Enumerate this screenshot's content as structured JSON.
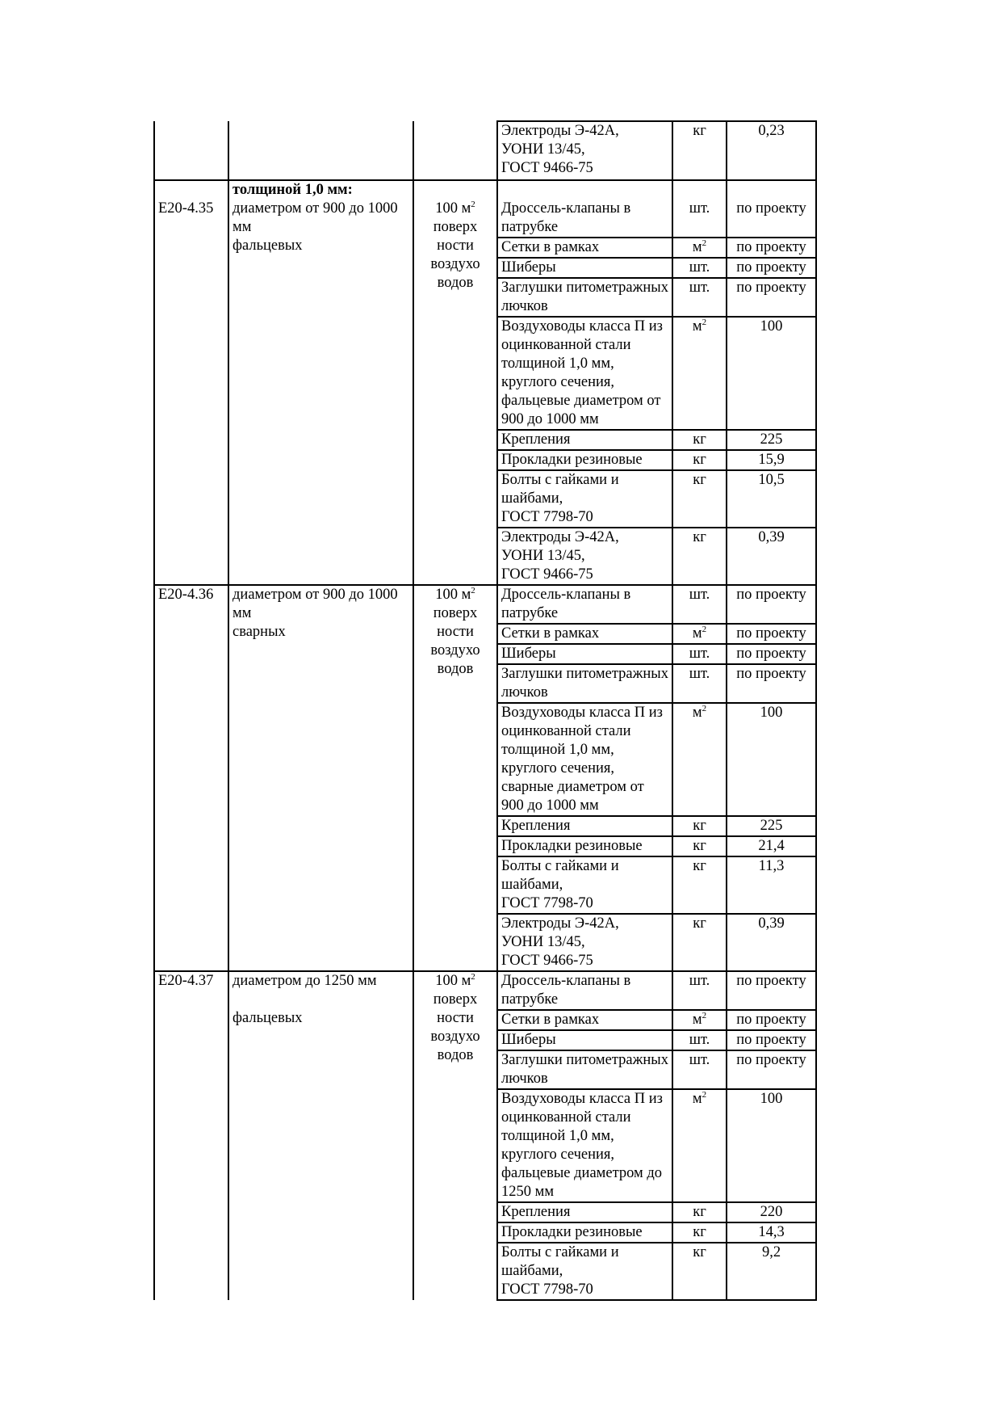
{
  "continuation": {
    "materials": [
      {
        "name": "Электроды Э-42А,\nУОНИ 13/45,\nГОСТ 9466-75",
        "unit": "кг",
        "qty": "0,23"
      }
    ]
  },
  "blocks": [
    {
      "code": "Е20-4.35",
      "heading": "толщиной 1,0 мм:",
      "description": "диаметром от 900 до 1000 мм\nфальцевых",
      "measure": "100 м",
      "measure_sup": "2",
      "measure_rest": "поверх\nности\nвоздухо\nводов",
      "materials": [
        {
          "name": "Дроссель-клапаны в патрубке",
          "unit": "шт.",
          "qty": "по проекту"
        },
        {
          "name": "Сетки в рамках",
          "unit": "м",
          "unit_sup": "2",
          "qty": "по проекту"
        },
        {
          "name": "Шиберы",
          "unit": "шт.",
          "qty": "по проекту"
        },
        {
          "name": "Заглушки питометражных лючков",
          "unit": "шт.",
          "qty": "по проекту"
        },
        {
          "name": "Воздуховоды класса П из оцинкованной стали толщиной 1,0 мм, круглого сечения, фальцевые диаметром от 900 до 1000 мм",
          "unit": "м",
          "unit_sup": "2",
          "qty": "100"
        },
        {
          "name": "Крепления",
          "unit": "кг",
          "qty": "225"
        },
        {
          "name": "Прокладки резиновые",
          "unit": "кг",
          "qty": "15,9"
        },
        {
          "name": "Болты с гайками и шайбами,\nГОСТ 7798-70",
          "unit": "кг",
          "qty": "10,5"
        },
        {
          "name": "Электроды Э-42А,\nУОНИ 13/45,\nГОСТ 9466-75",
          "unit": "кг",
          "qty": "0,39"
        }
      ]
    },
    {
      "code": "Е20-4.36",
      "heading": "",
      "description": "диаметром от 900 до 1000 мм\nсварных",
      "measure": "100 м",
      "measure_sup": "2",
      "measure_rest": "поверх\nности\nвоздухо\nводов",
      "materials": [
        {
          "name": "Дроссель-клапаны в патрубке",
          "unit": "шт.",
          "qty": "по проекту"
        },
        {
          "name": "Сетки в рамках",
          "unit": "м",
          "unit_sup": "2",
          "qty": "по проекту"
        },
        {
          "name": "Шиберы",
          "unit": "шт.",
          "qty": "по проекту"
        },
        {
          "name": "Заглушки питометражных лючков",
          "unit": "шт.",
          "qty": "по проекту"
        },
        {
          "name": "Воздуховоды класса П из оцинкованной стали толщиной 1,0 мм, круглого сечения, сварные диаметром от 900 до 1000 мм",
          "unit": "м",
          "unit_sup": "2",
          "qty": "100"
        },
        {
          "name": "Крепления",
          "unit": "кг",
          "qty": "225"
        },
        {
          "name": "Прокладки резиновые",
          "unit": "кг",
          "qty": "21,4"
        },
        {
          "name": "Болты с гайками и шайбами,\nГОСТ 7798-70",
          "unit": "кг",
          "qty": "11,3"
        },
        {
          "name": "Электроды Э-42А,\nУОНИ 13/45,\nГОСТ 9466-75",
          "unit": "кг",
          "qty": "0,39"
        }
      ]
    },
    {
      "code": "Е20-4.37",
      "heading": "",
      "description": "диаметром до 1250 мм\n\nфальцевых",
      "measure": "100 м",
      "measure_sup": "2",
      "measure_rest": "поверх\nности\nвоздухо\nводов",
      "materials": [
        {
          "name": "Дроссель-клапаны в патрубке",
          "unit": "шт.",
          "qty": "по проекту"
        },
        {
          "name": "Сетки в рамках",
          "unit": "м",
          "unit_sup": "2",
          "qty": "по проекту"
        },
        {
          "name": "Шиберы",
          "unit": "шт.",
          "qty": "по проекту"
        },
        {
          "name": "Заглушки питометражных лючков",
          "unit": "шт.",
          "qty": "по проекту"
        },
        {
          "name": "Воздуховоды класса П из оцинкованной стали толщиной 1,0 мм, круглого сечения, фальцевые диаметром до 1250 мм",
          "unit": "м",
          "unit_sup": "2",
          "qty": "100"
        },
        {
          "name": "Крепления",
          "unit": "кг",
          "qty": "220"
        },
        {
          "name": "Прокладки резиновые",
          "unit": "кг",
          "qty": "14,3"
        },
        {
          "name": "Болты с гайками и шайбами,\nГОСТ 7798-70",
          "unit": "кг",
          "qty": "9,2"
        }
      ]
    }
  ]
}
